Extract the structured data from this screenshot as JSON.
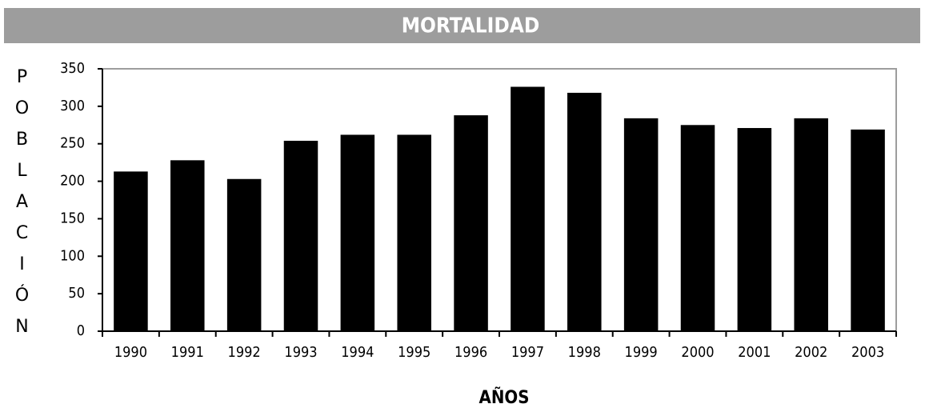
{
  "chart_data": {
    "type": "bar",
    "title": "MORTALIDAD",
    "y_label": "POBLACIÓN",
    "x_label": "AÑOS",
    "categories": [
      "1990",
      "1991",
      "1992",
      "1993",
      "1994",
      "1995",
      "1996",
      "1997",
      "1998",
      "1999",
      "2000",
      "2001",
      "2002",
      "2003"
    ],
    "values": [
      213,
      228,
      203,
      254,
      262,
      262,
      288,
      326,
      318,
      284,
      275,
      271,
      284,
      269
    ],
    "color": "#000000",
    "ylim": [
      0,
      350
    ],
    "yticks": [
      0,
      50,
      100,
      150,
      200,
      250,
      300,
      350
    ],
    "grid": false
  }
}
